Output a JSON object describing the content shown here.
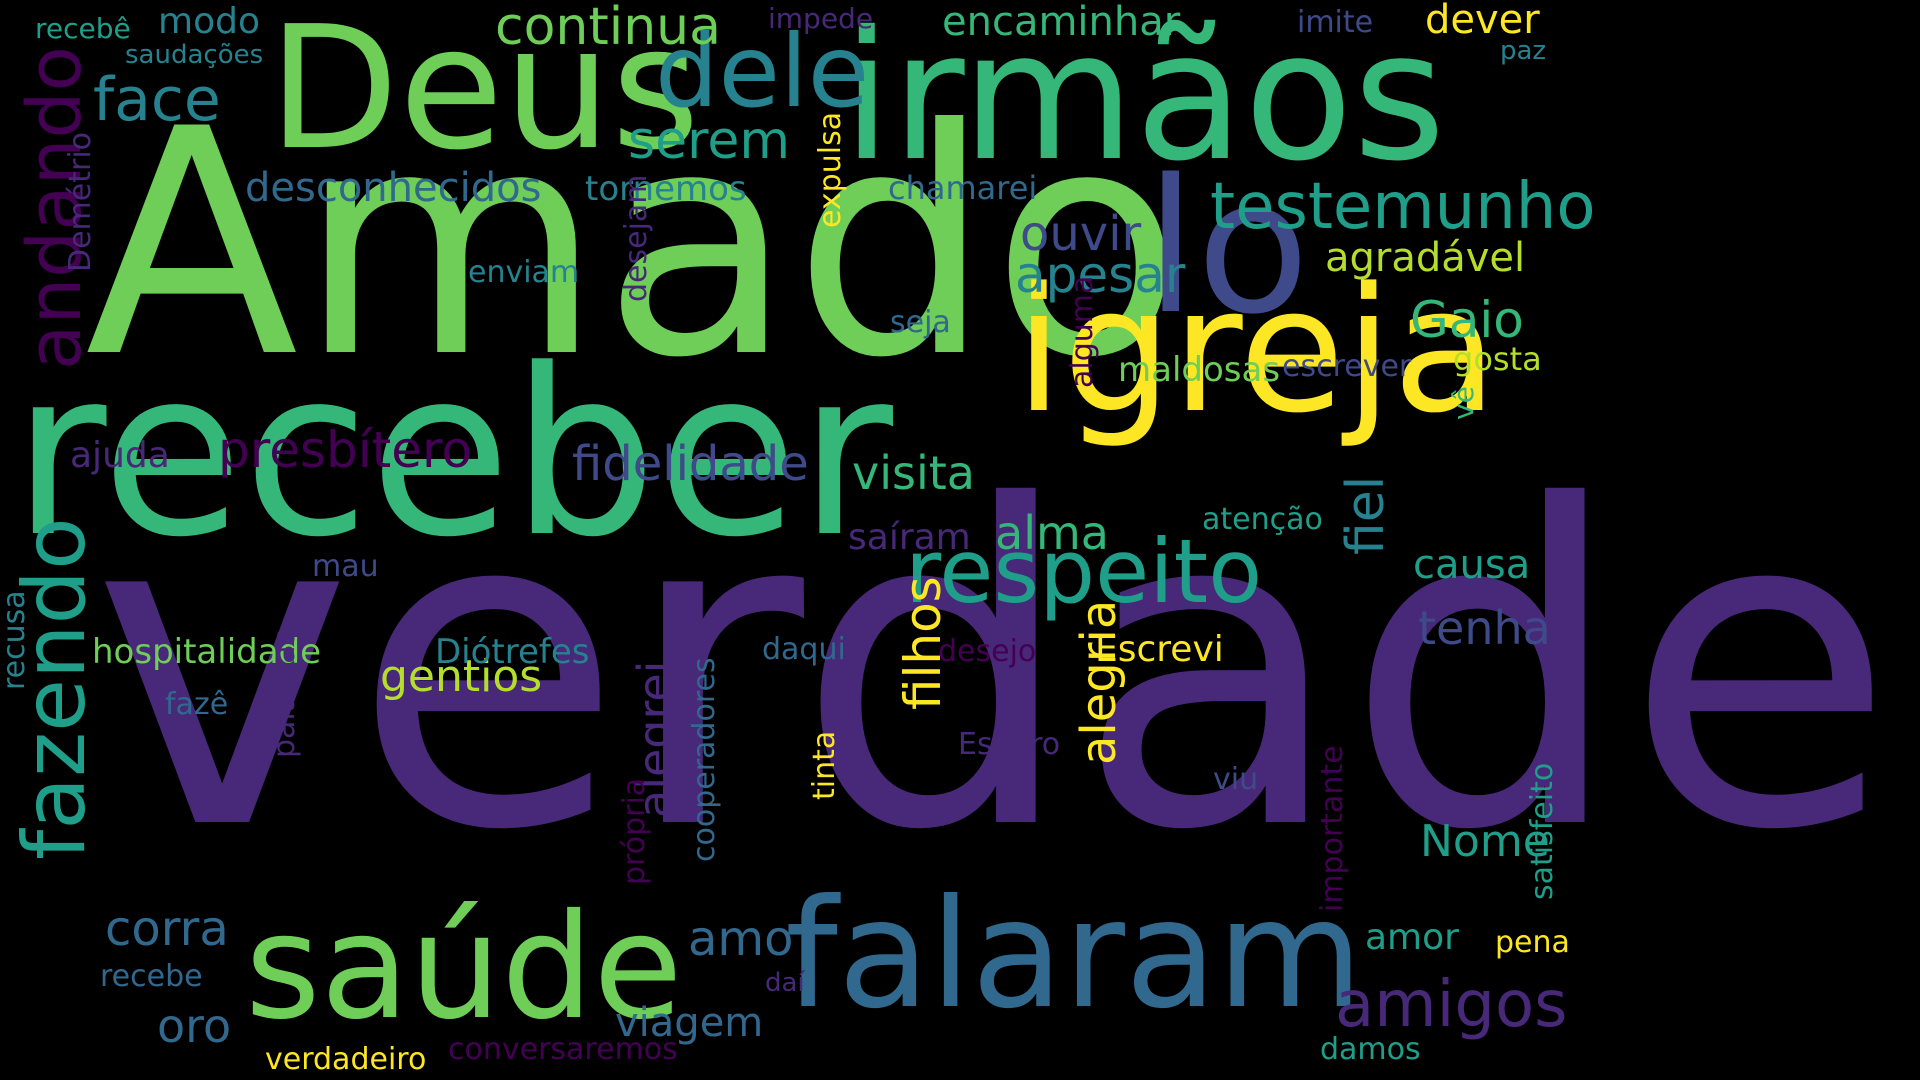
{
  "colors": {
    "background": "#000000",
    "c0": "#440154",
    "c1": "#482878",
    "c2": "#3e4a89",
    "c3": "#31688e",
    "c4": "#26828e",
    "c5": "#1f9e89",
    "c6": "#35b779",
    "c7": "#6ece58",
    "c8": "#b5de2b",
    "c9": "#fde725"
  },
  "words": [
    "verdade",
    "Amado",
    "irmãos",
    "receber",
    "igreja",
    "Deus",
    "lo",
    "falaram",
    "saúde",
    "dele",
    "respeito",
    "fazendo",
    "andando",
    "testemunho",
    "alegria",
    "continua",
    "face",
    "serem",
    "filhos",
    "ouvir",
    "apesar",
    "presbítero",
    "fidelidade",
    "visita",
    "amigos",
    "alma",
    "Gaio",
    "agradável",
    "encaminhar",
    "dever",
    "desconhecidos",
    "tornemos",
    "chamarei",
    "gentios",
    "alegrei",
    "corra",
    "amo",
    "fiel",
    "tenha",
    "causa",
    "maldosas",
    "escrever",
    "gosta",
    "oro",
    "viagem",
    "hospitalidade",
    "Diótrefes",
    "Escrevi",
    "Nome",
    "amor",
    "saíram",
    "atenção",
    "expulsa",
    "enviam",
    "desejam",
    "seja",
    "Demétrio",
    "ajuda",
    "mau",
    "daqui",
    "desejo",
    "cooperadores",
    "palavras",
    "recusa",
    "fazê",
    "tinta",
    "Espero",
    "viu",
    "importante",
    "satisfeito",
    "alguma",
    "própria",
    "recebe",
    "daí",
    "verdadeiro",
    "conversaremos",
    "damos",
    "pena",
    "vê",
    "recebê",
    "modo",
    "saudações",
    "impede",
    "imite",
    "paz"
  ]
}
